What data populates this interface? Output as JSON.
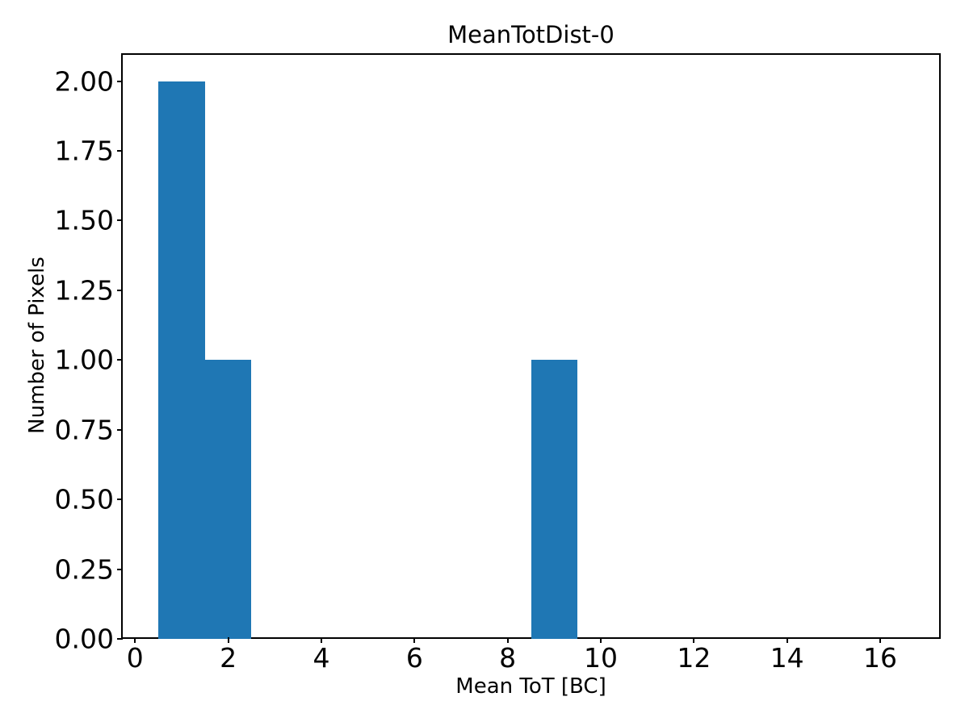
{
  "chart_data": {
    "type": "bar",
    "subtype": "histogram",
    "title": "MeanTotDist-0",
    "xlabel": "Mean ToT [BC]",
    "ylabel": "Number of Pixels",
    "bin_edges": [
      0.5,
      1.5,
      2.5,
      3.5,
      4.5,
      5.5,
      6.5,
      7.5,
      8.5,
      9.5
    ],
    "counts": [
      2,
      1,
      0,
      0,
      0,
      0,
      0,
      0,
      1
    ],
    "xlim": [
      -0.3,
      17.3
    ],
    "ylim": [
      0,
      2.1
    ],
    "x_ticks": [
      0,
      2,
      4,
      6,
      8,
      10,
      12,
      14,
      16
    ],
    "x_tick_labels": [
      "0",
      "2",
      "4",
      "6",
      "8",
      "10",
      "12",
      "14",
      "16"
    ],
    "y_ticks": [
      0.0,
      0.25,
      0.5,
      0.75,
      1.0,
      1.25,
      1.5,
      1.75,
      2.0
    ],
    "y_tick_labels": [
      "0.00",
      "0.25",
      "0.50",
      "0.75",
      "1.00",
      "1.25",
      "1.50",
      "1.75",
      "2.00"
    ],
    "bar_color": "#1f77b4",
    "axis_color": "#000000",
    "grid": false,
    "legend": null
  }
}
